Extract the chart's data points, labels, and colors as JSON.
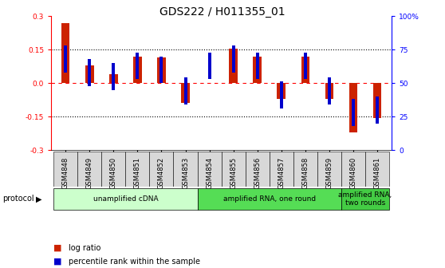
{
  "title": "GDS222 / H011355_01",
  "categories": [
    "GSM4848",
    "GSM4849",
    "GSM4850",
    "GSM4851",
    "GSM4852",
    "GSM4853",
    "GSM4854",
    "GSM4855",
    "GSM4856",
    "GSM4857",
    "GSM4858",
    "GSM4859",
    "GSM4860",
    "GSM4861"
  ],
  "log_ratio": [
    0.27,
    0.08,
    0.04,
    0.12,
    0.115,
    -0.09,
    0.0,
    0.155,
    0.12,
    -0.07,
    0.12,
    -0.07,
    -0.22,
    -0.155
  ],
  "percentile": [
    68,
    58,
    55,
    63,
    60,
    44,
    63,
    68,
    63,
    41,
    63,
    44,
    28,
    30
  ],
  "bar_color": "#cc2200",
  "pct_color": "#0000cc",
  "ylim_left": [
    -0.3,
    0.3
  ],
  "ylim_right": [
    0,
    100
  ],
  "yticks_left": [
    -0.3,
    -0.15,
    0.0,
    0.15,
    0.3
  ],
  "yticks_right": [
    0,
    25,
    50,
    75,
    100
  ],
  "protocol_groups": [
    {
      "label": "unamplified cDNA",
      "start": 0,
      "end": 5,
      "color": "#ccffcc"
    },
    {
      "label": "amplified RNA, one round",
      "start": 6,
      "end": 11,
      "color": "#55dd55"
    },
    {
      "label": "amplified RNA,\ntwo rounds",
      "start": 12,
      "end": 13,
      "color": "#44cc44"
    }
  ],
  "bar_width": 0.35,
  "pct_marker_size": 0.12,
  "background_color": "#ffffff",
  "title_fontsize": 10,
  "tick_fontsize": 6.5,
  "cat_fontsize": 6,
  "proto_fontsize": 6.5,
  "legend_fontsize": 7
}
